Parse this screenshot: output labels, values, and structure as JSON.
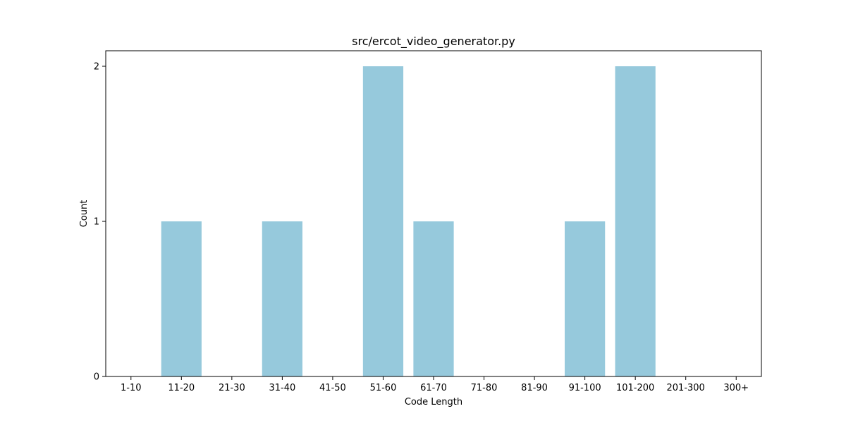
{
  "chart_data": {
    "type": "bar",
    "title": "src/ercot_video_generator.py",
    "xlabel": "Code Length",
    "ylabel": "Count",
    "categories": [
      "1-10",
      "11-20",
      "21-30",
      "31-40",
      "41-50",
      "51-60",
      "61-70",
      "71-80",
      "81-90",
      "91-100",
      "101-200",
      "201-300",
      "300+"
    ],
    "values": [
      0,
      1,
      0,
      1,
      0,
      2,
      1,
      0,
      0,
      1,
      2,
      0,
      0
    ],
    "ylim": [
      0,
      2.1
    ],
    "yticks": [
      "0",
      "1",
      "2"
    ],
    "bar_color": "#96c9dc",
    "grid": false,
    "legend": "none"
  }
}
